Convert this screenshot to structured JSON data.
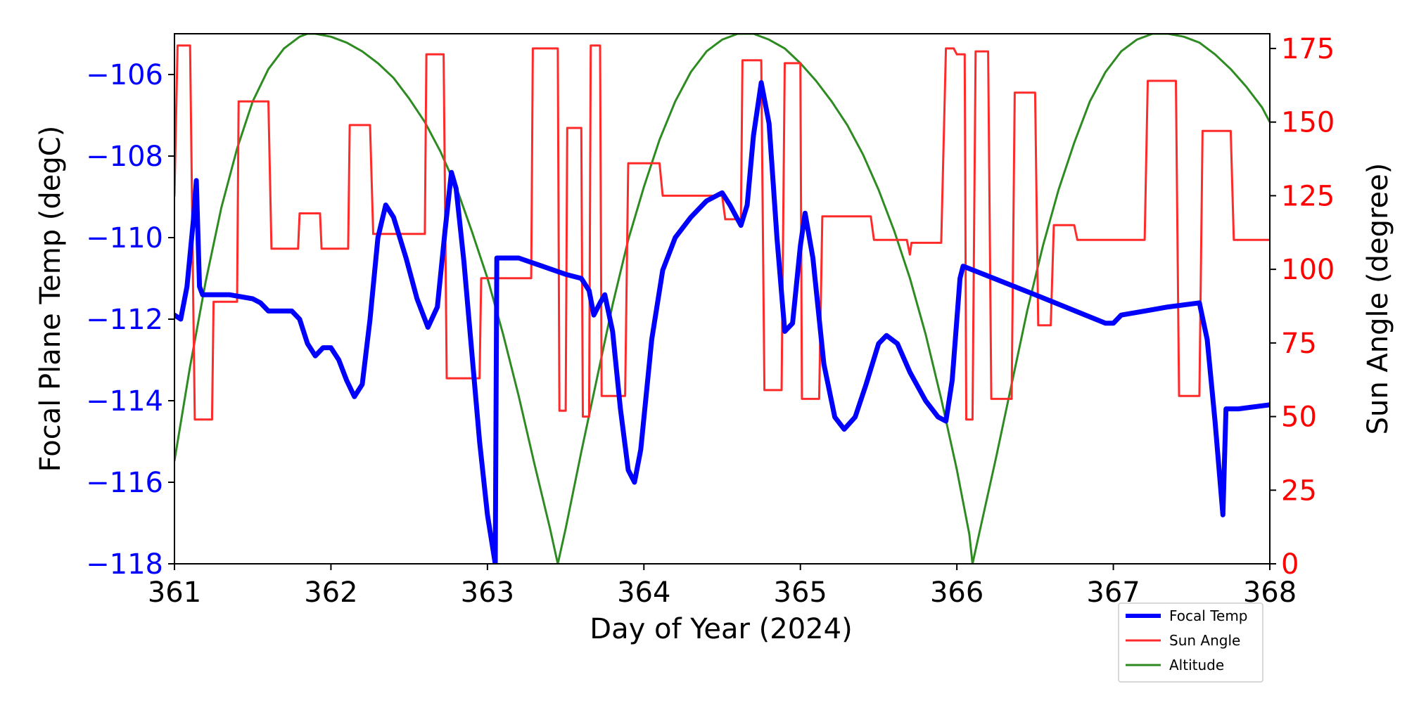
{
  "chart_data": {
    "type": "line",
    "xlabel": "Day of Year (2024)",
    "ylabel_left": "Focal Plane Temp (degC)",
    "ylabel_right": "Sun Angle (degree)",
    "xlim": [
      361,
      368
    ],
    "ylim_left": [
      -118,
      -105
    ],
    "ylim_right": [
      0,
      180
    ],
    "x_ticks": [
      "361",
      "362",
      "363",
      "364",
      "365",
      "366",
      "367",
      "368"
    ],
    "y_left_ticks": [
      "−106",
      "−108",
      "−110",
      "−112",
      "−114",
      "−116",
      "−118"
    ],
    "y_right_ticks": [
      "175",
      "150",
      "125",
      "100",
      "75",
      "50",
      "25",
      "0"
    ],
    "grid": false,
    "legend_position": "lower-right, below axes",
    "colors": {
      "focal_temp": "#0000ff",
      "sun_angle": "#ff2a2a",
      "altitude": "#2e8b22",
      "left_axis_text": "#0000ff",
      "right_axis_text": "#ff0000"
    },
    "series": [
      {
        "name": "Focal Temp",
        "axis": "left",
        "points": [
          [
            361.0,
            -111.9
          ],
          [
            361.04,
            -112.0
          ],
          [
            361.08,
            -111.2
          ],
          [
            361.12,
            -109.6
          ],
          [
            361.14,
            -108.6
          ],
          [
            361.16,
            -111.2
          ],
          [
            361.18,
            -111.4
          ],
          [
            361.35,
            -111.4
          ],
          [
            361.5,
            -111.5
          ],
          [
            361.55,
            -111.6
          ],
          [
            361.6,
            -111.8
          ],
          [
            361.75,
            -111.8
          ],
          [
            361.8,
            -112.0
          ],
          [
            361.85,
            -112.6
          ],
          [
            361.9,
            -112.9
          ],
          [
            361.95,
            -112.7
          ],
          [
            362.0,
            -112.7
          ],
          [
            362.05,
            -113.0
          ],
          [
            362.1,
            -113.5
          ],
          [
            362.15,
            -113.9
          ],
          [
            362.2,
            -113.6
          ],
          [
            362.25,
            -112.0
          ],
          [
            362.3,
            -110.0
          ],
          [
            362.35,
            -109.2
          ],
          [
            362.4,
            -109.5
          ],
          [
            362.48,
            -110.5
          ],
          [
            362.55,
            -111.5
          ],
          [
            362.62,
            -112.2
          ],
          [
            362.68,
            -111.7
          ],
          [
            362.73,
            -109.8
          ],
          [
            362.77,
            -108.4
          ],
          [
            362.8,
            -108.8
          ],
          [
            362.85,
            -110.6
          ],
          [
            362.9,
            -112.8
          ],
          [
            362.95,
            -115.0
          ],
          [
            363.0,
            -116.8
          ],
          [
            363.05,
            -118.0
          ],
          [
            363.06,
            -110.5
          ],
          [
            363.2,
            -110.5
          ],
          [
            363.35,
            -110.7
          ],
          [
            363.5,
            -110.9
          ],
          [
            363.6,
            -111.0
          ],
          [
            363.65,
            -111.3
          ],
          [
            363.68,
            -111.9
          ],
          [
            363.72,
            -111.6
          ],
          [
            363.75,
            -111.4
          ],
          [
            363.8,
            -112.3
          ],
          [
            363.85,
            -114.2
          ],
          [
            363.9,
            -115.7
          ],
          [
            363.94,
            -116.0
          ],
          [
            363.98,
            -115.2
          ],
          [
            364.05,
            -112.5
          ],
          [
            364.12,
            -110.8
          ],
          [
            364.2,
            -110.0
          ],
          [
            364.3,
            -109.5
          ],
          [
            364.4,
            -109.1
          ],
          [
            364.5,
            -108.9
          ],
          [
            364.55,
            -109.2
          ],
          [
            364.62,
            -109.7
          ],
          [
            364.66,
            -109.2
          ],
          [
            364.7,
            -107.5
          ],
          [
            364.75,
            -106.2
          ],
          [
            364.8,
            -107.2
          ],
          [
            364.85,
            -110.0
          ],
          [
            364.9,
            -112.3
          ],
          [
            364.95,
            -112.1
          ],
          [
            365.0,
            -110.2
          ],
          [
            365.03,
            -109.4
          ],
          [
            365.08,
            -110.5
          ],
          [
            365.15,
            -113.1
          ],
          [
            365.22,
            -114.4
          ],
          [
            365.28,
            -114.7
          ],
          [
            365.35,
            -114.4
          ],
          [
            365.42,
            -113.6
          ],
          [
            365.5,
            -112.6
          ],
          [
            365.55,
            -112.4
          ],
          [
            365.62,
            -112.6
          ],
          [
            365.7,
            -113.3
          ],
          [
            365.8,
            -114.0
          ],
          [
            365.88,
            -114.4
          ],
          [
            365.93,
            -114.5
          ],
          [
            365.97,
            -113.5
          ],
          [
            366.02,
            -111.0
          ],
          [
            366.04,
            -110.7
          ],
          [
            366.5,
            -111.4
          ],
          [
            366.95,
            -112.1
          ],
          [
            367.0,
            -112.1
          ],
          [
            367.05,
            -111.9
          ],
          [
            367.2,
            -111.8
          ],
          [
            367.35,
            -111.7
          ],
          [
            367.55,
            -111.6
          ],
          [
            367.6,
            -112.5
          ],
          [
            367.65,
            -114.5
          ],
          [
            367.7,
            -116.8
          ],
          [
            367.72,
            -114.2
          ],
          [
            367.8,
            -114.2
          ],
          [
            368.0,
            -114.1
          ]
        ]
      },
      {
        "name": "Sun Angle",
        "axis": "right",
        "points": [
          [
            361.0,
            125
          ],
          [
            361.02,
            176
          ],
          [
            361.1,
            176
          ],
          [
            361.12,
            89
          ],
          [
            361.13,
            49
          ],
          [
            361.24,
            49
          ],
          [
            361.25,
            89
          ],
          [
            361.4,
            89
          ],
          [
            361.41,
            157
          ],
          [
            361.6,
            157
          ],
          [
            361.62,
            107
          ],
          [
            361.79,
            107
          ],
          [
            361.8,
            119
          ],
          [
            361.93,
            119
          ],
          [
            361.94,
            107
          ],
          [
            362.11,
            107
          ],
          [
            362.12,
            149
          ],
          [
            362.25,
            149
          ],
          [
            362.27,
            112
          ],
          [
            362.6,
            112
          ],
          [
            362.61,
            173
          ],
          [
            362.72,
            173
          ],
          [
            362.74,
            63
          ],
          [
            362.95,
            63
          ],
          [
            362.96,
            97
          ],
          [
            363.28,
            97
          ],
          [
            363.29,
            175
          ],
          [
            363.45,
            175
          ],
          [
            363.46,
            52
          ],
          [
            363.5,
            52
          ],
          [
            363.51,
            148
          ],
          [
            363.6,
            148
          ],
          [
            363.61,
            50
          ],
          [
            363.65,
            50
          ],
          [
            363.66,
            176
          ],
          [
            363.72,
            176
          ],
          [
            363.73,
            57
          ],
          [
            363.88,
            57
          ],
          [
            363.9,
            136
          ],
          [
            364.1,
            136
          ],
          [
            364.12,
            125
          ],
          [
            364.5,
            125
          ],
          [
            364.52,
            117
          ],
          [
            364.62,
            117
          ],
          [
            364.63,
            171
          ],
          [
            364.75,
            171
          ],
          [
            364.77,
            59
          ],
          [
            364.88,
            59
          ],
          [
            364.9,
            170
          ],
          [
            365.0,
            170
          ],
          [
            365.01,
            56
          ],
          [
            365.12,
            56
          ],
          [
            365.14,
            118
          ],
          [
            365.45,
            118
          ],
          [
            365.47,
            110
          ],
          [
            365.68,
            110
          ],
          [
            365.7,
            105
          ],
          [
            365.71,
            109
          ],
          [
            365.9,
            109
          ],
          [
            365.93,
            175
          ],
          [
            365.98,
            175
          ],
          [
            366.0,
            173
          ],
          [
            366.05,
            173
          ],
          [
            366.06,
            49
          ],
          [
            366.1,
            49
          ],
          [
            366.12,
            174
          ],
          [
            366.2,
            174
          ],
          [
            366.22,
            56
          ],
          [
            366.35,
            56
          ],
          [
            366.37,
            160
          ],
          [
            366.5,
            160
          ],
          [
            366.52,
            81
          ],
          [
            366.6,
            81
          ],
          [
            366.62,
            115
          ],
          [
            366.75,
            115
          ],
          [
            366.77,
            110
          ],
          [
            367.2,
            110
          ],
          [
            367.22,
            164
          ],
          [
            367.4,
            164
          ],
          [
            367.42,
            57
          ],
          [
            367.55,
            57
          ],
          [
            367.57,
            147
          ],
          [
            367.75,
            147
          ],
          [
            367.77,
            110
          ],
          [
            368.0,
            110
          ]
        ]
      },
      {
        "name": "Altitude",
        "axis": "right",
        "points": [
          [
            361.0,
            35
          ],
          [
            361.1,
            67
          ],
          [
            361.2,
            96
          ],
          [
            361.3,
            121
          ],
          [
            361.4,
            141
          ],
          [
            361.5,
            157
          ],
          [
            361.6,
            168
          ],
          [
            361.7,
            175
          ],
          [
            361.8,
            179
          ],
          [
            361.85,
            180
          ],
          [
            361.9,
            180
          ],
          [
            362.0,
            179
          ],
          [
            362.1,
            177
          ],
          [
            362.2,
            174
          ],
          [
            362.3,
            170
          ],
          [
            362.4,
            165
          ],
          [
            362.5,
            158
          ],
          [
            362.6,
            150
          ],
          [
            362.7,
            140
          ],
          [
            362.8,
            128
          ],
          [
            362.9,
            113
          ],
          [
            363.0,
            97
          ],
          [
            363.1,
            78
          ],
          [
            363.2,
            57
          ],
          [
            363.3,
            34
          ],
          [
            363.4,
            12
          ],
          [
            363.45,
            0
          ],
          [
            363.5,
            12
          ],
          [
            363.6,
            38
          ],
          [
            363.7,
            63
          ],
          [
            363.8,
            88
          ],
          [
            363.9,
            110
          ],
          [
            364.0,
            128
          ],
          [
            364.1,
            144
          ],
          [
            364.2,
            157
          ],
          [
            364.3,
            167
          ],
          [
            364.4,
            174
          ],
          [
            364.5,
            178
          ],
          [
            364.6,
            180
          ],
          [
            364.7,
            180
          ],
          [
            364.8,
            178
          ],
          [
            364.9,
            175
          ],
          [
            365.0,
            170
          ],
          [
            365.1,
            164
          ],
          [
            365.2,
            157
          ],
          [
            365.3,
            149
          ],
          [
            365.4,
            139
          ],
          [
            365.5,
            127
          ],
          [
            365.6,
            113
          ],
          [
            365.7,
            97
          ],
          [
            365.8,
            78
          ],
          [
            365.9,
            56
          ],
          [
            366.0,
            32
          ],
          [
            366.08,
            10
          ],
          [
            366.1,
            0
          ],
          [
            366.15,
            12
          ],
          [
            366.25,
            36
          ],
          [
            366.35,
            61
          ],
          [
            366.45,
            86
          ],
          [
            366.55,
            108
          ],
          [
            366.65,
            127
          ],
          [
            366.75,
            143
          ],
          [
            366.85,
            157
          ],
          [
            366.95,
            167
          ],
          [
            367.05,
            174
          ],
          [
            367.15,
            178
          ],
          [
            367.25,
            180
          ],
          [
            367.35,
            180
          ],
          [
            367.45,
            179
          ],
          [
            367.55,
            177
          ],
          [
            367.65,
            173
          ],
          [
            367.75,
            168
          ],
          [
            367.85,
            162
          ],
          [
            367.95,
            155
          ],
          [
            368.0,
            150
          ]
        ]
      }
    ]
  }
}
